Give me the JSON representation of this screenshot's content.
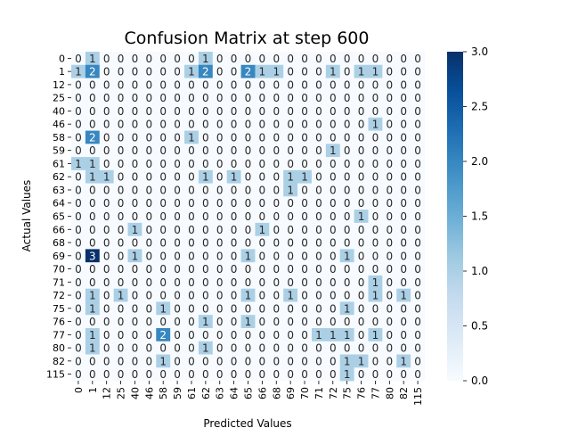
{
  "chart_data": {
    "type": "heatmap",
    "title": "Confusion Matrix at step 600",
    "xlabel": "Predicted Values",
    "ylabel": "Actual Values",
    "row_labels": [
      "0",
      "1",
      "12",
      "25",
      "40",
      "46",
      "58",
      "59",
      "61",
      "62",
      "63",
      "64",
      "65",
      "66",
      "68",
      "69",
      "70",
      "71",
      "72",
      "75",
      "76",
      "77",
      "80",
      "82",
      "115"
    ],
    "col_labels": [
      "0",
      "1",
      "12",
      "25",
      "40",
      "46",
      "58",
      "59",
      "61",
      "62",
      "63",
      "64",
      "65",
      "66",
      "68",
      "69",
      "70",
      "71",
      "72",
      "75",
      "76",
      "77",
      "80",
      "82",
      "115"
    ],
    "matrix": [
      [
        0,
        1,
        0,
        0,
        0,
        0,
        0,
        0,
        0,
        1,
        0,
        0,
        0,
        0,
        0,
        0,
        0,
        0,
        0,
        0,
        0,
        0,
        0,
        0,
        0
      ],
      [
        1,
        2,
        0,
        0,
        0,
        0,
        0,
        0,
        1,
        2,
        0,
        0,
        2,
        1,
        1,
        0,
        0,
        0,
        1,
        0,
        1,
        1,
        0,
        0,
        0
      ],
      [
        0,
        0,
        0,
        0,
        0,
        0,
        0,
        0,
        0,
        0,
        0,
        0,
        0,
        0,
        0,
        0,
        0,
        0,
        0,
        0,
        0,
        0,
        0,
        0,
        0
      ],
      [
        0,
        0,
        0,
        0,
        0,
        0,
        0,
        0,
        0,
        0,
        0,
        0,
        0,
        0,
        0,
        0,
        0,
        0,
        0,
        0,
        0,
        0,
        0,
        0,
        0
      ],
      [
        0,
        0,
        0,
        0,
        0,
        0,
        0,
        0,
        0,
        0,
        0,
        0,
        0,
        0,
        0,
        0,
        0,
        0,
        0,
        0,
        0,
        0,
        0,
        0,
        0
      ],
      [
        0,
        0,
        0,
        0,
        0,
        0,
        0,
        0,
        0,
        0,
        0,
        0,
        0,
        0,
        0,
        0,
        0,
        0,
        0,
        0,
        0,
        1,
        0,
        0,
        0
      ],
      [
        0,
        2,
        0,
        0,
        0,
        0,
        0,
        0,
        1,
        0,
        0,
        0,
        0,
        0,
        0,
        0,
        0,
        0,
        0,
        0,
        0,
        0,
        0,
        0,
        0
      ],
      [
        0,
        0,
        0,
        0,
        0,
        0,
        0,
        0,
        0,
        0,
        0,
        0,
        0,
        0,
        0,
        0,
        0,
        0,
        1,
        0,
        0,
        0,
        0,
        0,
        0
      ],
      [
        1,
        1,
        0,
        0,
        0,
        0,
        0,
        0,
        0,
        0,
        0,
        0,
        0,
        0,
        0,
        0,
        0,
        0,
        0,
        0,
        0,
        0,
        0,
        0,
        0
      ],
      [
        0,
        1,
        1,
        0,
        0,
        0,
        0,
        0,
        0,
        1,
        0,
        1,
        0,
        0,
        0,
        1,
        1,
        0,
        0,
        0,
        0,
        0,
        0,
        0,
        0
      ],
      [
        0,
        0,
        0,
        0,
        0,
        0,
        0,
        0,
        0,
        0,
        0,
        0,
        0,
        0,
        0,
        1,
        0,
        0,
        0,
        0,
        0,
        0,
        0,
        0,
        0
      ],
      [
        0,
        0,
        0,
        0,
        0,
        0,
        0,
        0,
        0,
        0,
        0,
        0,
        0,
        0,
        0,
        0,
        0,
        0,
        0,
        0,
        0,
        0,
        0,
        0,
        0
      ],
      [
        0,
        0,
        0,
        0,
        0,
        0,
        0,
        0,
        0,
        0,
        0,
        0,
        0,
        0,
        0,
        0,
        0,
        0,
        0,
        0,
        1,
        0,
        0,
        0,
        0
      ],
      [
        0,
        0,
        0,
        0,
        1,
        0,
        0,
        0,
        0,
        0,
        0,
        0,
        0,
        1,
        0,
        0,
        0,
        0,
        0,
        0,
        0,
        0,
        0,
        0,
        0
      ],
      [
        0,
        0,
        0,
        0,
        0,
        0,
        0,
        0,
        0,
        0,
        0,
        0,
        0,
        0,
        0,
        0,
        0,
        0,
        0,
        0,
        0,
        0,
        0,
        0,
        0
      ],
      [
        0,
        3,
        0,
        0,
        1,
        0,
        0,
        0,
        0,
        0,
        0,
        0,
        1,
        0,
        0,
        0,
        0,
        0,
        0,
        1,
        0,
        0,
        0,
        0,
        0
      ],
      [
        0,
        0,
        0,
        0,
        0,
        0,
        0,
        0,
        0,
        0,
        0,
        0,
        0,
        0,
        0,
        0,
        0,
        0,
        0,
        0,
        0,
        0,
        0,
        0,
        0
      ],
      [
        0,
        0,
        0,
        0,
        0,
        0,
        0,
        0,
        0,
        0,
        0,
        0,
        0,
        0,
        0,
        0,
        0,
        0,
        0,
        0,
        0,
        1,
        0,
        0,
        0
      ],
      [
        0,
        1,
        0,
        1,
        0,
        0,
        0,
        0,
        0,
        0,
        0,
        0,
        1,
        0,
        0,
        1,
        0,
        0,
        0,
        0,
        0,
        1,
        0,
        1,
        0
      ],
      [
        0,
        1,
        0,
        0,
        0,
        0,
        1,
        0,
        0,
        0,
        0,
        0,
        0,
        0,
        0,
        0,
        0,
        0,
        0,
        1,
        0,
        0,
        0,
        0,
        0
      ],
      [
        0,
        0,
        0,
        0,
        0,
        0,
        0,
        0,
        0,
        1,
        0,
        0,
        1,
        0,
        0,
        0,
        0,
        0,
        0,
        0,
        0,
        0,
        0,
        0,
        0
      ],
      [
        0,
        1,
        0,
        0,
        0,
        0,
        2,
        0,
        0,
        0,
        0,
        0,
        0,
        0,
        0,
        0,
        0,
        1,
        1,
        1,
        0,
        1,
        0,
        0,
        0
      ],
      [
        0,
        1,
        0,
        0,
        0,
        0,
        0,
        0,
        0,
        1,
        0,
        0,
        0,
        0,
        0,
        0,
        0,
        0,
        0,
        0,
        0,
        0,
        0,
        0,
        0
      ],
      [
        0,
        0,
        0,
        0,
        0,
        0,
        1,
        0,
        0,
        0,
        0,
        0,
        0,
        0,
        0,
        0,
        0,
        0,
        0,
        1,
        1,
        0,
        0,
        1,
        0
      ],
      [
        0,
        0,
        0,
        0,
        0,
        0,
        0,
        0,
        0,
        0,
        0,
        0,
        0,
        0,
        0,
        0,
        0,
        0,
        0,
        1,
        0,
        0,
        0,
        0,
        0
      ]
    ],
    "vmin": 0,
    "vmax": 3,
    "colorbar_ticks": [
      "0.0",
      "0.5",
      "1.0",
      "1.5",
      "2.0",
      "2.5",
      "3.0"
    ],
    "colormap": [
      "#f7fbff",
      "#deebf7",
      "#c6dbef",
      "#9ecae1",
      "#6baed6",
      "#4292c6",
      "#2171b5",
      "#08519c",
      "#08306b"
    ]
  }
}
